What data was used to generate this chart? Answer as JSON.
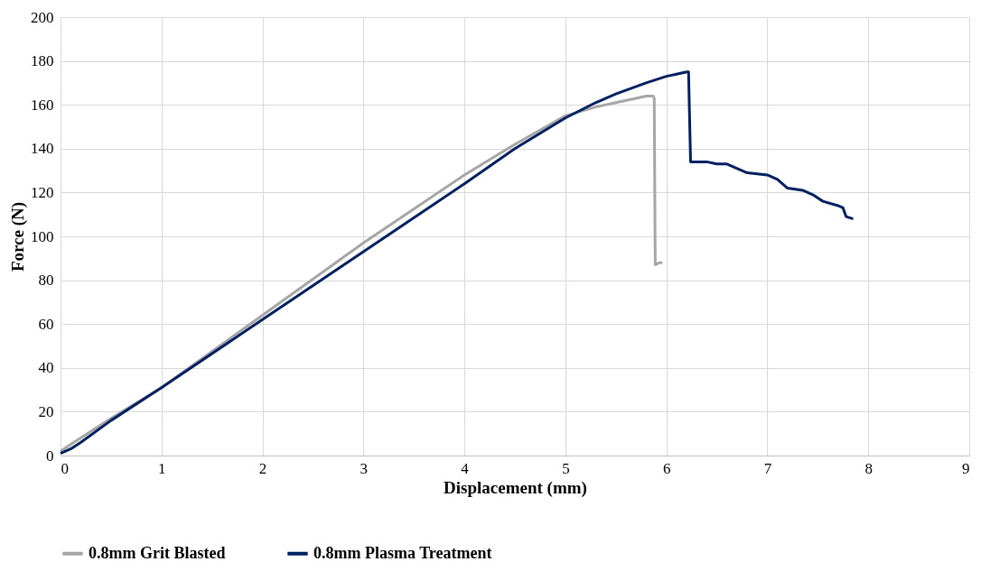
{
  "chart_data": {
    "type": "line",
    "xlabel": "Displacement (mm)",
    "ylabel": "Force (N)",
    "xlim": [
      0,
      9
    ],
    "xticks": [
      0,
      1,
      2,
      3,
      4,
      5,
      6,
      7,
      8,
      9
    ],
    "ylim": [
      0,
      200
    ],
    "yticks": [
      0,
      20,
      40,
      60,
      80,
      100,
      120,
      140,
      160,
      180,
      200
    ],
    "grid": true,
    "legend": "bottom",
    "marker": "none",
    "line_style": "solid",
    "series": [
      {
        "name": "0.8mm Grit Blasted",
        "color": "#a6a6a6",
        "x": [
          0,
          0.1,
          0.5,
          1,
          2,
          3,
          4,
          4.5,
          5,
          5.3,
          5.5,
          5.7,
          5.8,
          5.87,
          5.88,
          5.89,
          5.93,
          5.96
        ],
        "values": [
          2,
          5,
          17,
          31,
          64,
          97,
          128,
          142,
          155,
          159,
          161,
          163,
          164,
          164,
          163,
          87,
          88,
          88
        ]
      },
      {
        "name": "0.8mm Plasma Treatment",
        "color": "#002060",
        "x": [
          0,
          0.1,
          0.2,
          0.5,
          1,
          2,
          3,
          4,
          4.5,
          5,
          5.3,
          5.5,
          5.8,
          6,
          6.1,
          6.2,
          6.22,
          6.24,
          6.4,
          6.5,
          6.6,
          6.8,
          7,
          7.1,
          7.2,
          7.35,
          7.45,
          7.55,
          7.7,
          7.75,
          7.78,
          7.85
        ],
        "values": [
          1,
          3,
          6,
          16,
          31,
          62,
          93,
          124,
          140,
          154,
          161,
          165,
          170,
          173,
          174,
          175,
          175,
          134,
          134,
          133,
          133,
          129,
          128,
          126,
          122,
          121,
          119,
          116,
          114,
          113,
          109,
          108
        ]
      }
    ]
  }
}
